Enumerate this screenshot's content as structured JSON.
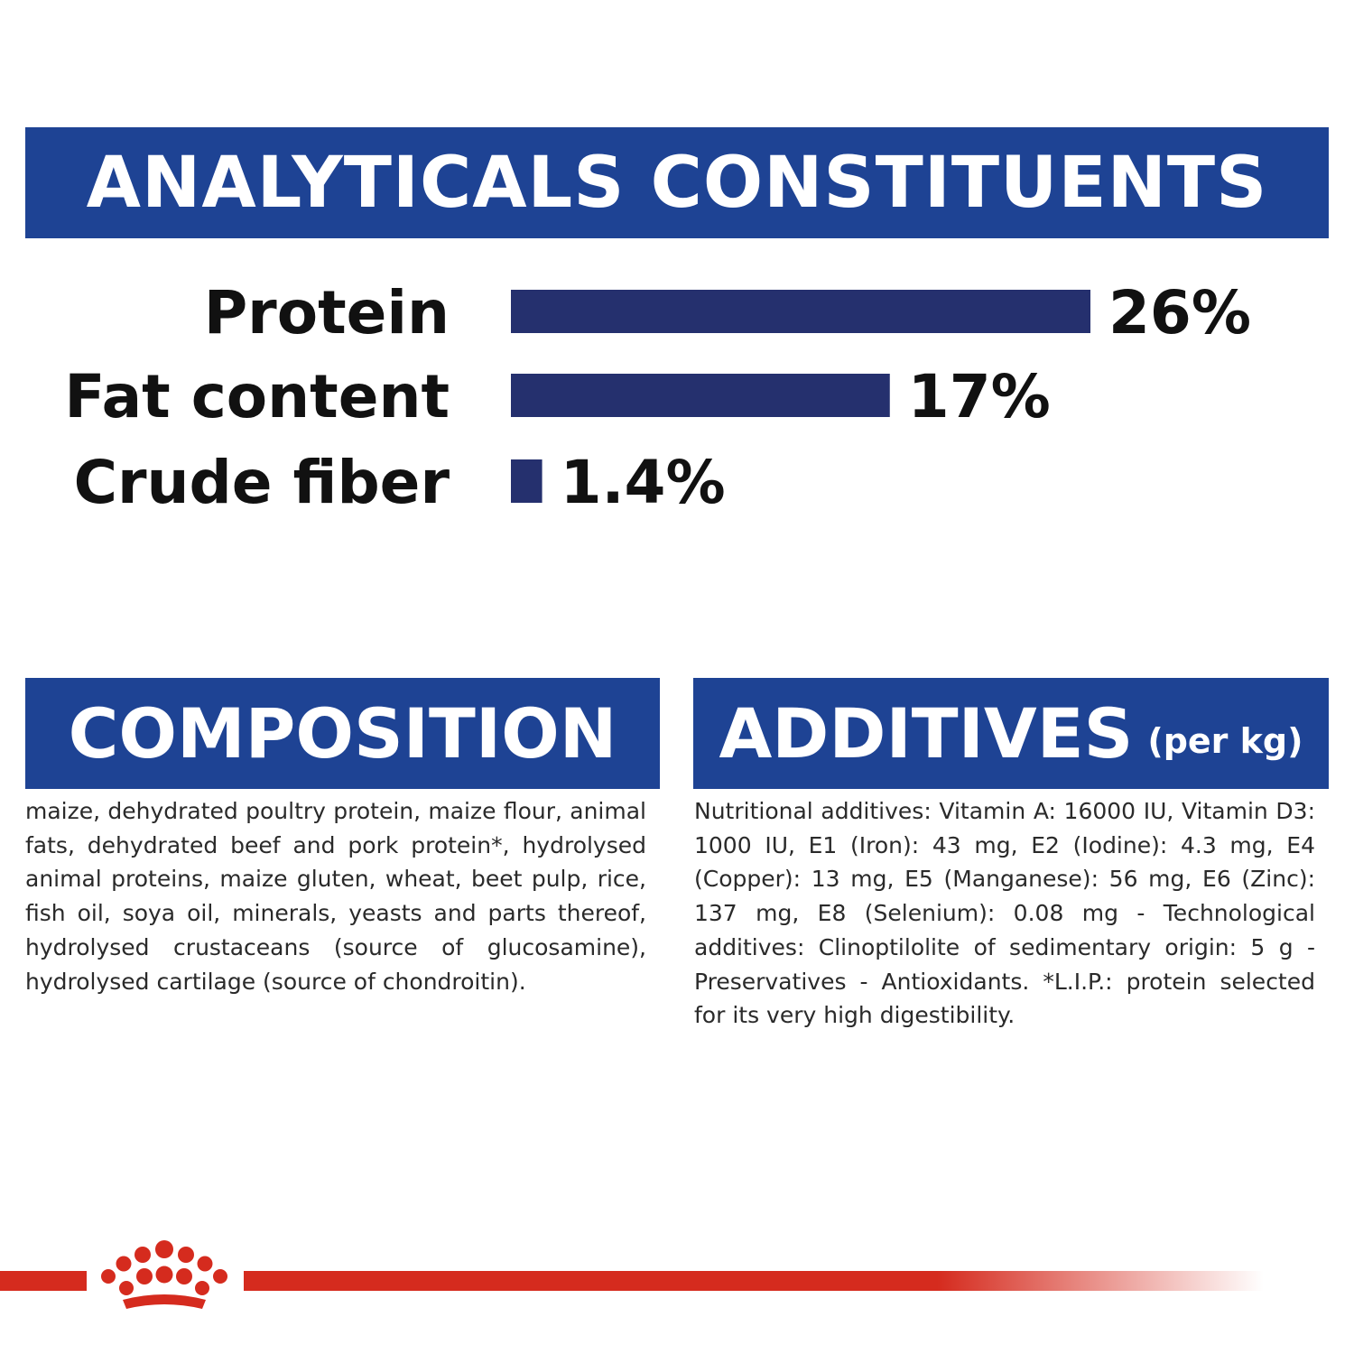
{
  "sections": {
    "analytical_title": "ANALYTICALS CONSTITUENTS",
    "composition_title": "COMPOSITION",
    "additives_title": "ADDITIVES",
    "additives_unit": "(per kg)"
  },
  "chart_data": {
    "type": "bar",
    "orientation": "horizontal",
    "title": "ANALYTICALS CONSTITUENTS",
    "categories": [
      "Protein",
      "Fat content",
      "Crude fiber"
    ],
    "values": [
      26,
      17,
      1.4
    ],
    "value_labels": [
      "26%",
      "17%",
      "1.4%"
    ],
    "unit": "%",
    "xlim": [
      0,
      26
    ],
    "grid": false
  },
  "composition_text": "maize, dehydrated poultry protein, maize flour, animal fats, dehydrated beef and pork protein*, hydrolysed animal proteins, maize gluten, wheat, beet pulp, rice, fish oil, soya oil, minerals, yeasts and parts thereof, hydrolysed crustaceans (source of glucosamine), hydrolysed cartilage (source of chondroitin).",
  "additives_text": "Nutritional additives: Vitamin A: 16000 IU, Vitamin D3: 1000 IU, E1 (Iron): 43 mg, E2 (Iodine): 4.3 mg, E4 (Copper): 13 mg, E5 (Manganese): 56 mg, E6 (Zinc): 137 mg, E8 (Selenium): 0.08 mg - Technological additives: Clinoptilolite of sedimentary origin: 5 g - Preservatives - Antioxidants. *L.I.P.: protein selected for its very high digestibility.",
  "colors": {
    "banner": "#1e4394",
    "bar": "#25306e",
    "brand_red": "#d52b1e"
  },
  "logo": "royal-crown-logo"
}
